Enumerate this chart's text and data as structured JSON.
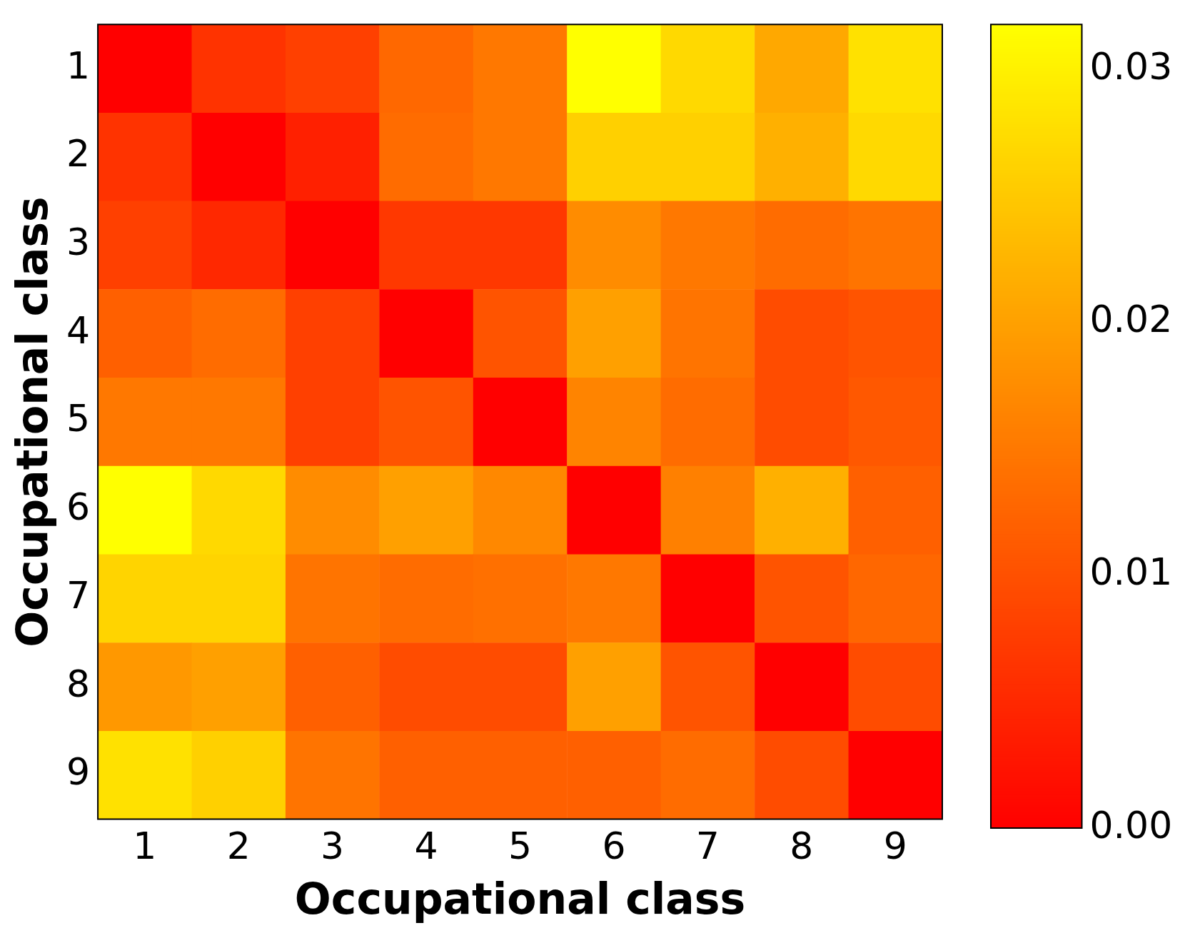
{
  "chart_data": {
    "type": "heatmap",
    "xlabel": "Occupational class",
    "ylabel": "Occupational class",
    "categories": [
      "1",
      "2",
      "3",
      "4",
      "5",
      "6",
      "7",
      "8",
      "9"
    ],
    "y_categories": [
      "1",
      "2",
      "3",
      "4",
      "5",
      "6",
      "7",
      "8",
      "9"
    ],
    "cells": [
      [
        0,
        0.0064,
        0.008,
        0.013,
        0.015,
        0.0318,
        0.027,
        0.021,
        0.028
      ],
      [
        0.0064,
        0,
        0.004,
        0.0135,
        0.015,
        0.026,
        0.026,
        0.022,
        0.027
      ],
      [
        0.008,
        0.005,
        0,
        0.007,
        0.007,
        0.0175,
        0.015,
        0.0135,
        0.0145
      ],
      [
        0.012,
        0.0135,
        0.008,
        0,
        0.0105,
        0.02,
        0.0145,
        0.0095,
        0.0105
      ],
      [
        0.015,
        0.015,
        0.008,
        0.0105,
        0,
        0.0165,
        0.0135,
        0.0095,
        0.011
      ],
      [
        0.0318,
        0.027,
        0.0175,
        0.02,
        0.017,
        0,
        0.016,
        0.022,
        0.012
      ],
      [
        0.0265,
        0.0265,
        0.0145,
        0.0135,
        0.014,
        0.015,
        0,
        0.0105,
        0.0128
      ],
      [
        0.019,
        0.02,
        0.012,
        0.0095,
        0.0095,
        0.02,
        0.0105,
        0,
        0.0095
      ],
      [
        0.028,
        0.026,
        0.0145,
        0.012,
        0.012,
        0.012,
        0.0135,
        0.0095,
        0
      ]
    ],
    "clim": [
      0,
      0.0318
    ],
    "cticks": [
      {
        "value": 0,
        "label": "0.00"
      },
      {
        "value": 0.01,
        "label": "0.01"
      },
      {
        "value": 0.02,
        "label": "0.02"
      },
      {
        "value": 0.03,
        "label": "0.03"
      }
    ]
  }
}
